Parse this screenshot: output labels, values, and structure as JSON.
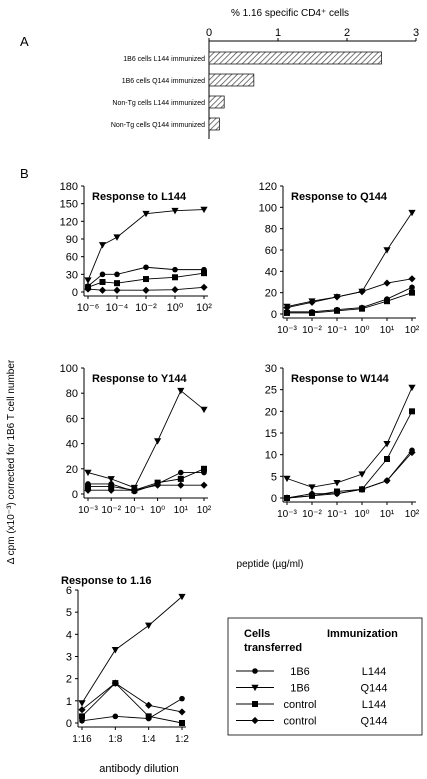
{
  "figure": {
    "panel_a_label": "A",
    "panel_b_label": "B",
    "shared_ylabel": "Δ cpm (x10⁻³) corrected for 1B6 T cell number",
    "shared_xlabel": "peptide (µg/ml)"
  },
  "legend": {
    "header_cells": "Cells",
    "header_transferred": "transferred",
    "header_immunization": "Immunization",
    "entries": [
      {
        "cells": "1B6",
        "immunization": "L144",
        "marker": "circle"
      },
      {
        "cells": "1B6",
        "immunization": "Q144",
        "marker": "triangle-down"
      },
      {
        "cells": "control",
        "immunization": "L144",
        "marker": "square"
      },
      {
        "cells": "control",
        "immunization": "Q144",
        "marker": "diamond"
      }
    ]
  },
  "chart_data": [
    {
      "type": "bar",
      "orientation": "horizontal",
      "title": "% 1.16 specific CD4⁺ cells",
      "categories": [
        "1B6 cells L144 immunized",
        "1B6 cells Q144 immunized",
        "Non-Tg cells L144 immunized",
        "Non-Tg cells Q144 immunized"
      ],
      "values": [
        2.5,
        0.65,
        0.22,
        0.15
      ],
      "xlim": [
        0,
        3
      ],
      "xticks": [
        "0",
        "1",
        "2",
        "3"
      ],
      "fill": "hatched"
    },
    {
      "type": "line",
      "title": "Response to L144",
      "x": [
        -6,
        -5,
        -4,
        -3,
        -2,
        -1,
        0,
        1,
        2
      ],
      "xtick_labels": [
        "10⁻⁶",
        "10⁻⁴",
        "10⁻²",
        "10⁰",
        "10²"
      ],
      "xtick_positions": [
        -6,
        -4,
        -2,
        0,
        2
      ],
      "ylim": [
        0,
        180
      ],
      "yticks": [
        "0",
        "30",
        "60",
        "90",
        "120",
        "150",
        "180"
      ],
      "series": [
        {
          "x": [
            -6,
            -5,
            -4,
            -3,
            -2,
            -1,
            0,
            1,
            2
          ],
          "values": [
            10,
            30,
            30,
            null,
            42,
            null,
            38,
            null,
            38
          ],
          "marker": "circle"
        },
        {
          "x": [
            -6,
            -5,
            -4,
            -3,
            -2,
            -1,
            0,
            1,
            2
          ],
          "values": [
            20,
            80,
            93,
            null,
            133,
            null,
            138,
            null,
            140
          ],
          "marker": "triangle-down"
        },
        {
          "x": [
            -6,
            -5,
            -4,
            -3,
            -2,
            -1,
            0,
            1,
            2
          ],
          "values": [
            8,
            17,
            15,
            null,
            22,
            null,
            25,
            null,
            32
          ],
          "marker": "square"
        },
        {
          "x": [
            -6,
            -5,
            -4,
            -3,
            -2,
            -1,
            0,
            1,
            2
          ],
          "values": [
            5,
            3,
            3,
            null,
            3,
            null,
            4,
            null,
            8
          ],
          "marker": "diamond"
        }
      ]
    },
    {
      "type": "line",
      "title": "Response to Q144",
      "x": [
        -3,
        -2,
        -1,
        0,
        1,
        2
      ],
      "xtick_labels": [
        "10⁻³",
        "10⁻²",
        "10⁻¹",
        "10⁰",
        "10¹",
        "10²"
      ],
      "ylim": [
        0,
        120
      ],
      "yticks": [
        "0",
        "20",
        "40",
        "60",
        "80",
        "100",
        "120"
      ],
      "series": [
        {
          "values": [
            2,
            2,
            4,
            6,
            14,
            25
          ],
          "marker": "circle"
        },
        {
          "values": [
            7,
            12,
            16,
            21,
            60,
            95
          ],
          "marker": "triangle-down"
        },
        {
          "values": [
            1,
            1,
            3,
            5,
            12,
            20
          ],
          "marker": "square"
        },
        {
          "values": [
            6,
            11,
            16,
            21,
            29,
            33
          ],
          "marker": "diamond"
        }
      ]
    },
    {
      "type": "line",
      "title": "Response to Y144",
      "x": [
        -3,
        -2,
        -1,
        0,
        1,
        2
      ],
      "xtick_labels": [
        "10⁻³",
        "10⁻²",
        "10⁻¹",
        "10⁰",
        "10¹",
        "10²"
      ],
      "ylim": [
        0,
        100
      ],
      "yticks": [
        "0",
        "20",
        "40",
        "60",
        "80",
        "100"
      ],
      "series": [
        {
          "values": [
            8,
            8,
            2,
            8,
            17,
            17
          ],
          "marker": "circle"
        },
        {
          "values": [
            17,
            12,
            5,
            42,
            82,
            67
          ],
          "marker": "triangle-down"
        },
        {
          "values": [
            6,
            6,
            3,
            9,
            12,
            20
          ],
          "marker": "square"
        },
        {
          "values": [
            3,
            3,
            3,
            7,
            7,
            7
          ],
          "marker": "diamond"
        }
      ]
    },
    {
      "type": "line",
      "title": "Response to W144",
      "x": [
        -3,
        -2,
        -1,
        0,
        1,
        2
      ],
      "xtick_labels": [
        "10⁻³",
        "10⁻²",
        "10⁻¹",
        "10⁰",
        "10¹",
        "10²"
      ],
      "ylim": [
        0,
        30
      ],
      "yticks": [
        "0",
        "5",
        "10",
        "15",
        "20",
        "25",
        "30"
      ],
      "series": [
        {
          "values": [
            0,
            0.5,
            1,
            2,
            4,
            11
          ],
          "marker": "circle"
        },
        {
          "values": [
            4.5,
            2.5,
            3.5,
            5.5,
            12.5,
            25.5
          ],
          "marker": "triangle-down"
        },
        {
          "values": [
            0,
            0.5,
            1.5,
            2,
            9,
            20
          ],
          "marker": "square"
        },
        {
          "values": [
            0,
            1,
            1,
            2,
            4,
            10.5
          ],
          "marker": "diamond"
        }
      ]
    },
    {
      "type": "line",
      "title": "Response to 1.16",
      "xlabel": "antibody dilution",
      "categories": [
        "1:16",
        "1:8",
        "1:4",
        "1:2"
      ],
      "ylim": [
        0,
        6
      ],
      "yticks": [
        "0",
        "1",
        "2",
        "3",
        "4",
        "5",
        "6"
      ],
      "series": [
        {
          "values": [
            0.1,
            0.3,
            0.2,
            1.1
          ],
          "marker": "circle"
        },
        {
          "values": [
            0.9,
            3.3,
            4.4,
            5.7
          ],
          "marker": "triangle-down"
        },
        {
          "values": [
            0.3,
            1.8,
            0.3,
            0.0
          ],
          "marker": "square"
        },
        {
          "values": [
            0.6,
            1.8,
            0.8,
            0.5
          ],
          "marker": "diamond"
        }
      ]
    }
  ]
}
